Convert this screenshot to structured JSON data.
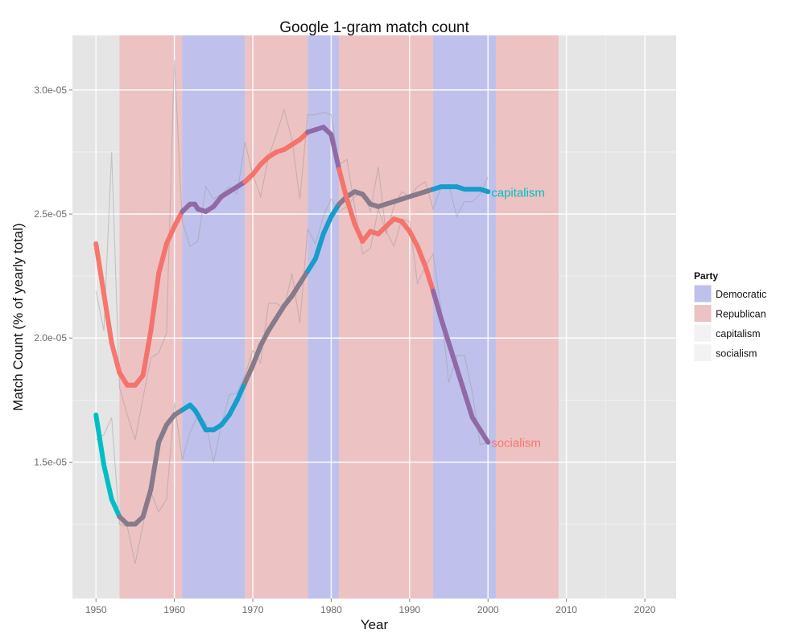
{
  "chart_data": {
    "type": "line",
    "title": "Google 1-gram match count",
    "xlabel": "Year",
    "ylabel": "Match Count (% of yearly total)",
    "xlim": [
      1947,
      2024
    ],
    "ylim": [
      9.5e-06,
      3.22e-05
    ],
    "x_ticks": [
      1950,
      1960,
      1970,
      1980,
      1990,
      2000,
      2010,
      2020
    ],
    "x_tick_labels": [
      "1950",
      "1960",
      "1970",
      "1980",
      "1990",
      "2000",
      "2010",
      "2020"
    ],
    "y_ticks": [
      1.5e-05,
      2e-05,
      2.5e-05,
      3e-05
    ],
    "y_tick_labels": [
      "1.5e-05",
      "2.0e-05",
      "2.5e-05",
      "3.0e-05"
    ],
    "grid": true,
    "background_color": "#e5e5e5",
    "legend": {
      "title": "Party",
      "position": "right",
      "entries": [
        {
          "label": "Democratic",
          "color": "#bfc1ec"
        },
        {
          "label": "Republican",
          "color": "#ecc2c3"
        },
        {
          "label": "capitalism",
          "color": "#f2f2f2"
        },
        {
          "label": "socialism",
          "color": "#f2f2f2"
        }
      ]
    },
    "party_periods": [
      {
        "party": "Republican",
        "start": 1953,
        "end": 1961
      },
      {
        "party": "Democratic",
        "start": 1961,
        "end": 1969
      },
      {
        "party": "Republican",
        "start": 1969,
        "end": 1977
      },
      {
        "party": "Democratic",
        "start": 1977,
        "end": 1981
      },
      {
        "party": "Republican",
        "start": 1981,
        "end": 1993
      },
      {
        "party": "Democratic",
        "start": 1993,
        "end": 2001
      },
      {
        "party": "Republican",
        "start": 2001,
        "end": 2009
      }
    ],
    "party_colors": {
      "Democratic": "#bfc1ec",
      "Republican": "#ecc2c3"
    },
    "raw_series": [
      {
        "name": "capitalism",
        "x": [
          1950,
          1951,
          1952,
          1953,
          1954,
          1955,
          1956,
          1957,
          1958,
          1959,
          1960,
          1961,
          1962,
          1963,
          1964,
          1965,
          1966,
          1967,
          1968,
          1969,
          1970,
          1971,
          1972,
          1973,
          1974,
          1975,
          1976,
          1977,
          1978,
          1979,
          1980,
          1981,
          1982,
          1983,
          1984,
          1985,
          1986,
          1987,
          1988,
          1989,
          1990,
          1991,
          1992,
          1993,
          1994,
          1995,
          1996,
          1997,
          1998,
          1999,
          2000
        ],
        "y": [
          1.59e-05,
          1.61e-05,
          1.68e-05,
          1.25e-05,
          1.24e-05,
          1.09e-05,
          1.25e-05,
          1.38e-05,
          1.3e-05,
          1.35e-05,
          1.74e-05,
          1.51e-05,
          1.62e-05,
          1.69e-05,
          1.66e-05,
          1.5e-05,
          1.65e-05,
          1.77e-05,
          1.78e-05,
          1.85e-05,
          1.95e-05,
          1.9e-05,
          2.14e-05,
          2.14e-05,
          2.12e-05,
          2.26e-05,
          2.06e-05,
          2.44e-05,
          2.38e-05,
          2.49e-05,
          2.56e-05,
          2.51e-05,
          2.53e-05,
          2.57e-05,
          2.59e-05,
          2.51e-05,
          2.69e-05,
          2.42e-05,
          2.53e-05,
          2.59e-05,
          2.57e-05,
          2.61e-05,
          2.63e-05,
          2.52e-05,
          2.61e-05,
          2.62e-05,
          2.49e-05,
          2.55e-05,
          2.55e-05,
          2.58e-05,
          2.65e-05
        ]
      },
      {
        "name": "socialism",
        "x": [
          1950,
          1951,
          1952,
          1953,
          1954,
          1955,
          1956,
          1957,
          1958,
          1959,
          1960,
          1961,
          1962,
          1963,
          1964,
          1965,
          1966,
          1967,
          1968,
          1969,
          1970,
          1971,
          1972,
          1973,
          1974,
          1975,
          1976,
          1977,
          1978,
          1979,
          1980,
          1981,
          1982,
          1983,
          1984,
          1985,
          1986,
          1987,
          1988,
          1989,
          1990,
          1991,
          1992,
          1993,
          1994,
          1995,
          1996,
          1997,
          1998,
          1999,
          2000
        ],
        "y": [
          2.19e-05,
          2.03e-05,
          2.75e-05,
          1.8e-05,
          1.69e-05,
          1.59e-05,
          1.76e-05,
          1.92e-05,
          1.94e-05,
          2.02e-05,
          3.12e-05,
          2.47e-05,
          2.37e-05,
          2.39e-05,
          2.61e-05,
          2.56e-05,
          2.58e-05,
          2.61e-05,
          2.58e-05,
          2.79e-05,
          2.66e-05,
          2.57e-05,
          2.73e-05,
          2.82e-05,
          2.92e-05,
          2.8e-05,
          2.56e-05,
          2.9e-05,
          2.9e-05,
          2.91e-05,
          2.9e-05,
          2.7e-05,
          2.72e-05,
          2.53e-05,
          2.34e-05,
          2.36e-05,
          2.52e-05,
          2.43e-05,
          2.37e-05,
          2.48e-05,
          2.47e-05,
          2.22e-05,
          2.29e-05,
          2.34e-05,
          2.12e-05,
          1.82e-05,
          1.93e-05,
          1.93e-05,
          1.78e-05,
          1.57e-05,
          1.58e-05
        ]
      }
    ],
    "smooth_series": [
      {
        "name": "capitalism",
        "label": "capitalism",
        "color": "#00bfc4",
        "x": [
          1950,
          1951,
          1952,
          1953,
          1954,
          1955,
          1956,
          1957,
          1958,
          1959,
          1960,
          1961,
          1962,
          1962.6,
          1963,
          1964,
          1965,
          1966,
          1967,
          1968,
          1969,
          1970,
          1971,
          1972,
          1973,
          1974,
          1975,
          1976,
          1977,
          1978,
          1979,
          1980,
          1981,
          1982,
          1983,
          1984,
          1985,
          1986,
          1987,
          1988,
          1989,
          1990,
          1991,
          1992,
          1993,
          1994,
          1995,
          1996,
          1997,
          1998,
          1999,
          2000
        ],
        "y": [
          1.69e-05,
          1.49e-05,
          1.35e-05,
          1.28e-05,
          1.25e-05,
          1.25e-05,
          1.28e-05,
          1.39e-05,
          1.58e-05,
          1.65e-05,
          1.69e-05,
          1.71e-05,
          1.73e-05,
          1.71e-05,
          1.69e-05,
          1.63e-05,
          1.63e-05,
          1.65e-05,
          1.69e-05,
          1.75e-05,
          1.82e-05,
          1.89e-05,
          1.97e-05,
          2.03e-05,
          2.08e-05,
          2.13e-05,
          2.17e-05,
          2.22e-05,
          2.27e-05,
          2.32e-05,
          2.42e-05,
          2.49e-05,
          2.54e-05,
          2.57e-05,
          2.59e-05,
          2.58e-05,
          2.54e-05,
          2.53e-05,
          2.54e-05,
          2.55e-05,
          2.56e-05,
          2.57e-05,
          2.58e-05,
          2.59e-05,
          2.6e-05,
          2.61e-05,
          2.61e-05,
          2.61e-05,
          2.6e-05,
          2.6e-05,
          2.6e-05,
          2.59e-05
        ]
      },
      {
        "name": "socialism",
        "label": "socialism",
        "color": "#f8766d",
        "x": [
          1950,
          1951,
          1952,
          1953,
          1954,
          1955,
          1956,
          1957,
          1958,
          1959,
          1960,
          1961,
          1962,
          1962.6,
          1963,
          1964,
          1965,
          1966,
          1967,
          1968,
          1969,
          1970,
          1971,
          1972,
          1973,
          1974,
          1975,
          1976,
          1977,
          1978,
          1979,
          1980,
          1981,
          1982,
          1983,
          1984,
          1985,
          1986,
          1987,
          1988,
          1989,
          1990,
          1991,
          1992,
          1993,
          1994,
          1995,
          1996,
          1997,
          1998,
          1999,
          2000
        ],
        "y": [
          2.38e-05,
          2.18e-05,
          1.98e-05,
          1.86e-05,
          1.81e-05,
          1.81e-05,
          1.85e-05,
          2.03e-05,
          2.26e-05,
          2.38e-05,
          2.45e-05,
          2.51e-05,
          2.54e-05,
          2.54e-05,
          2.52e-05,
          2.51e-05,
          2.53e-05,
          2.57e-05,
          2.59e-05,
          2.61e-05,
          2.63e-05,
          2.66e-05,
          2.7e-05,
          2.73e-05,
          2.75e-05,
          2.76e-05,
          2.78e-05,
          2.8e-05,
          2.83e-05,
          2.84e-05,
          2.85e-05,
          2.82e-05,
          2.68e-05,
          2.56e-05,
          2.46e-05,
          2.39e-05,
          2.43e-05,
          2.42e-05,
          2.45e-05,
          2.48e-05,
          2.47e-05,
          2.43e-05,
          2.37e-05,
          2.29e-05,
          2.19e-05,
          2.08e-05,
          1.98e-05,
          1.88e-05,
          1.78e-05,
          1.68e-05,
          1.63e-05,
          1.58e-05
        ]
      }
    ]
  }
}
